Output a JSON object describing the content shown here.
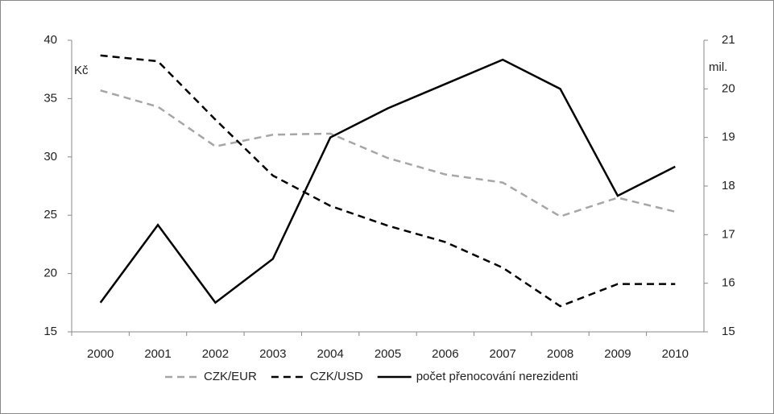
{
  "chart_data": {
    "type": "line",
    "categories": [
      "2000",
      "2001",
      "2002",
      "2003",
      "2004",
      "2005",
      "2006",
      "2007",
      "2008",
      "2009",
      "2010"
    ],
    "y_label": "Kč",
    "y2_label": "mil.",
    "ylim": [
      15,
      40
    ],
    "yticks": [
      15,
      20,
      25,
      30,
      35,
      40
    ],
    "y2lim": [
      15,
      21
    ],
    "y2ticks": [
      15,
      16,
      17,
      18,
      19,
      20,
      21
    ],
    "legend": "bottom",
    "series": [
      {
        "name": "CZK/EUR",
        "color": "#a6a6a6",
        "dash": "dashed",
        "values": [
          35.7,
          34.3,
          30.9,
          31.9,
          32.0,
          29.9,
          28.5,
          27.8,
          24.9,
          26.5,
          25.3
        ]
      },
      {
        "name": "CZK/USD",
        "color": "#000000",
        "dash": "dashed",
        "values": [
          38.7,
          38.2,
          33.2,
          28.4,
          25.8,
          24.1,
          22.7,
          20.5,
          17.2,
          19.1,
          19.1
        ]
      },
      {
        "name": "počet přenocování nerezidenti",
        "color": "#000000",
        "dash": "solid",
        "axis": "y2",
        "values": [
          15.6,
          17.2,
          15.6,
          16.5,
          19.0,
          19.6,
          20.1,
          20.6,
          20.0,
          17.8,
          18.4
        ]
      }
    ]
  }
}
